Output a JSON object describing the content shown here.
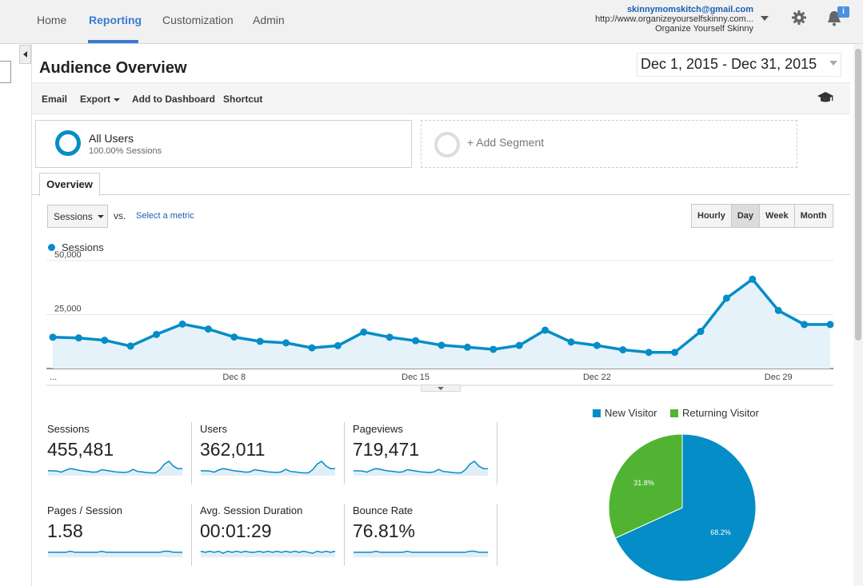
{
  "nav": {
    "items": [
      "Home",
      "Reporting",
      "Customization",
      "Admin"
    ],
    "active": "Reporting"
  },
  "account": {
    "email": "skinnymomskitch@gmail.com",
    "url": "http://www.organizeyourselfskinny.com...",
    "property": "Organize Yourself Skinny",
    "notification_badge": "i"
  },
  "page": {
    "title": "Audience Overview",
    "date_range": "Dec 1, 2015 - Dec 31, 2015"
  },
  "toolbar": {
    "email": "Email",
    "export": "Export",
    "add_to_dashboard": "Add to Dashboard",
    "shortcut": "Shortcut"
  },
  "segments": {
    "active_name": "All Users",
    "active_sub": "100.00% Sessions",
    "add_label": "+ Add Segment"
  },
  "tabs": {
    "overview": "Overview"
  },
  "metric_picker": {
    "selected": "Sessions",
    "vs": "vs.",
    "select_metric": "Select a metric"
  },
  "granularity": {
    "options": [
      "Hourly",
      "Day",
      "Week",
      "Month"
    ],
    "selected": "Day"
  },
  "colors": {
    "accent": "#3a7bd5",
    "series": "#058dc7",
    "returning": "#50b432"
  },
  "chart_data": {
    "type": "line",
    "series": [
      {
        "name": "Sessions",
        "values": [
          14500,
          14200,
          13100,
          10400,
          15800,
          20600,
          18300,
          14600,
          12600,
          11900,
          9600,
          10600,
          16900,
          14500,
          12900,
          10800,
          9900,
          8900,
          10700,
          17800,
          12300,
          10700,
          8700,
          7500,
          7500,
          17200,
          32600,
          41400,
          26900,
          20400,
          20400
        ]
      }
    ],
    "x_tick_labels": [
      "...",
      "Dec 8",
      "Dec 15",
      "Dec 22",
      "Dec 29"
    ],
    "y_tick_labels": [
      "25,000",
      "50,000"
    ],
    "ylim": [
      0,
      50000
    ],
    "legend": "top-left",
    "grid": true
  },
  "scorecards": [
    {
      "label": "Sessions",
      "value": "455,481"
    },
    {
      "label": "Users",
      "value": "362,011"
    },
    {
      "label": "Pageviews",
      "value": "719,471"
    },
    {
      "label": "Pages / Session",
      "value": "1.58"
    },
    {
      "label": "Avg. Session Duration",
      "value": "00:01:29"
    },
    {
      "label": "Bounce Rate",
      "value": "76.81%"
    }
  ],
  "pie_chart": {
    "type": "pie",
    "labels": [
      "New Visitor",
      "Returning Visitor"
    ],
    "values": [
      68.2,
      31.8
    ],
    "value_labels": [
      "68.2%",
      "31.8%"
    ],
    "colors": [
      "#058dc7",
      "#50b432"
    ],
    "legend": "top"
  }
}
